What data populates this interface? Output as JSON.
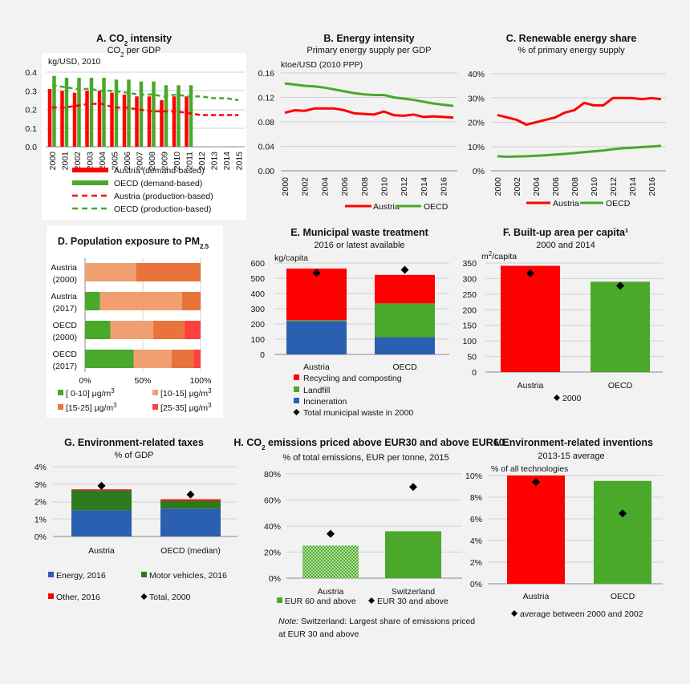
{
  "colors": {
    "austria": "#ff0000",
    "oecd": "#4aa82a",
    "darkgreen": "#2d7a1e",
    "blue": "#2b5fb0",
    "salmon": "#f0a070",
    "orange": "#e8743c",
    "lightred": "#ff4040",
    "bg": "#f2f2f2"
  },
  "chart_data": [
    {
      "id": "A",
      "type": "bar",
      "title": "A. CO",
      "title_sub": "2",
      "title_end": " intensity",
      "subtitle_pre": "CO",
      "subtitle_sub": "2",
      "subtitle_end": " per GDP",
      "ylabel": "kg/USD, 2010",
      "ylim": [
        0,
        0.4
      ],
      "yticks": [
        "0.0",
        "0.1",
        "0.2",
        "0.3",
        "0.4"
      ],
      "categories": [
        "2000",
        "2001",
        "2002",
        "2003",
        "2004",
        "2005",
        "2006",
        "2007",
        "2008",
        "2009",
        "2010",
        "2011",
        "2012",
        "2013",
        "2014",
        "2015"
      ],
      "series": [
        {
          "name": "Austria (demand-based)",
          "kind": "bar",
          "values": [
            0.31,
            0.3,
            0.29,
            0.3,
            0.3,
            0.29,
            0.28,
            0.27,
            0.27,
            0.25,
            0.27,
            0.27,
            null,
            null,
            null,
            null
          ]
        },
        {
          "name": "OECD (demand-based)",
          "kind": "bar",
          "values": [
            0.38,
            0.37,
            0.37,
            0.37,
            0.37,
            0.36,
            0.36,
            0.35,
            0.35,
            0.33,
            0.33,
            0.33,
            null,
            null,
            null,
            null
          ]
        },
        {
          "name": "Austria (production-based)",
          "kind": "dash",
          "values": [
            0.21,
            0.21,
            0.22,
            0.23,
            0.23,
            0.21,
            0.21,
            0.2,
            0.19,
            0.19,
            0.19,
            0.18,
            0.17,
            0.17,
            0.17,
            0.17
          ]
        },
        {
          "name": "OECD (production-based)",
          "kind": "dash",
          "values": [
            0.33,
            0.32,
            0.31,
            0.31,
            0.3,
            0.3,
            0.29,
            0.28,
            0.28,
            0.27,
            0.28,
            0.27,
            0.27,
            0.26,
            0.26,
            0.25
          ]
        }
      ],
      "legend": [
        "Austria (demand-based)",
        "OECD (demand-based)",
        "Austria (production-based)",
        "OECD (production-based)"
      ]
    },
    {
      "id": "B",
      "type": "line",
      "title": "B. Energy intensity",
      "subtitle": "Primary energy supply per GDP",
      "ylabel": "ktoe/USD (2010 PPP)",
      "ylim": [
        0,
        0.16
      ],
      "yticks": [
        "0.00",
        "0.04",
        "0.08",
        "0.12",
        "0.16"
      ],
      "x": [
        2000,
        2001,
        2002,
        2003,
        2004,
        2005,
        2006,
        2007,
        2008,
        2009,
        2010,
        2011,
        2012,
        2013,
        2014,
        2015,
        2016,
        2017
      ],
      "xticks": [
        "2000",
        "2002",
        "2004",
        "2006",
        "2008",
        "2010",
        "2012",
        "2014",
        "2016"
      ],
      "series": [
        {
          "name": "Austria",
          "values": [
            0.095,
            0.099,
            0.098,
            0.102,
            0.102,
            0.102,
            0.099,
            0.094,
            0.093,
            0.092,
            0.097,
            0.091,
            0.09,
            0.092,
            0.088,
            0.089,
            0.088,
            0.087
          ]
        },
        {
          "name": "OECD",
          "values": [
            0.143,
            0.141,
            0.139,
            0.138,
            0.136,
            0.133,
            0.13,
            0.127,
            0.125,
            0.124,
            0.124,
            0.12,
            0.118,
            0.116,
            0.113,
            0.11,
            0.108,
            0.106
          ]
        }
      ]
    },
    {
      "id": "C",
      "type": "line",
      "title": "C. Renewable energy share",
      "subtitle": "% of primary energy supply",
      "ylim": [
        0,
        40
      ],
      "yticks": [
        "0%",
        "10%",
        "20%",
        "30%",
        "40%"
      ],
      "x": [
        2000,
        2001,
        2002,
        2003,
        2004,
        2005,
        2006,
        2007,
        2008,
        2009,
        2010,
        2011,
        2012,
        2013,
        2014,
        2015,
        2016,
        2017
      ],
      "xticks": [
        "2000",
        "2002",
        "2004",
        "2006",
        "2008",
        "2010",
        "2012",
        "2014",
        "2016"
      ],
      "series": [
        {
          "name": "Austria",
          "values": [
            23,
            22,
            21,
            19,
            20,
            21,
            22,
            24,
            25,
            28,
            27,
            27,
            30,
            30,
            30,
            29.5,
            30,
            29.5
          ]
        },
        {
          "name": "OECD",
          "values": [
            6,
            5.8,
            5.9,
            6,
            6.2,
            6.4,
            6.7,
            7,
            7.3,
            7.7,
            8,
            8.4,
            8.9,
            9.3,
            9.5,
            9.8,
            10,
            10.3
          ]
        }
      ]
    },
    {
      "id": "D",
      "type": "bar",
      "title": "D. Population exposure to PM",
      "title_sub": "2.5",
      "categories": [
        [
          "Austria",
          "(2000)"
        ],
        [
          "Austria",
          "(2017)"
        ],
        [
          "OECD",
          "(2000)"
        ],
        [
          "OECD",
          "(2017)"
        ]
      ],
      "xticks": [
        "0%",
        "50%",
        "100%"
      ],
      "series": [
        {
          "name": "[ 0-10] μg/m³",
          "values": [
            0,
            13,
            22,
            42
          ]
        },
        {
          "name": "[10-15] μg/m³",
          "values": [
            44,
            71,
            37,
            33
          ]
        },
        {
          "name": "[15-25] μg/m³",
          "values": [
            56,
            16,
            27,
            19
          ]
        },
        {
          "name": "[25-35] μg/m³",
          "values": [
            0,
            0,
            14,
            6
          ]
        }
      ],
      "legend": [
        [
          "[ 0-10] μg/m",
          "[10-15] μg/m"
        ],
        [
          "[15-25] μg/m",
          "[25-35] μg/m"
        ]
      ],
      "legend_sup": "3"
    },
    {
      "id": "E",
      "type": "bar",
      "title": "E. Municipal waste treatment",
      "subtitle": "2016 or latest available",
      "ylabel": "kg/capita",
      "ylim": [
        0,
        600
      ],
      "yticks": [
        "0",
        "100",
        "200",
        "300",
        "400",
        "500",
        "600"
      ],
      "categories": [
        "Austria",
        "OECD"
      ],
      "series": [
        {
          "name": "Incineration",
          "values": [
            218,
            113
          ]
        },
        {
          "name": "Landfill",
          "values": [
            7,
            222
          ]
        },
        {
          "name": "Recycling and composting",
          "values": [
            339,
            187
          ]
        },
        {
          "name": "Total municipal waste in 2000",
          "kind": "marker",
          "values": [
            535,
            555
          ]
        }
      ],
      "legend": [
        "Recycling and composting",
        "Landfill",
        "Incineration",
        "Total municipal waste in 2000"
      ]
    },
    {
      "id": "F",
      "type": "bar",
      "title": "F. Built-up area per capita¹",
      "subtitle": "2000 and 2014",
      "ylabel_pre": "m",
      "ylabel_sup": "2",
      "ylabel_end": "/capita",
      "ylim": [
        0,
        350
      ],
      "yticks": [
        "0",
        "50",
        "100",
        "150",
        "200",
        "250",
        "300",
        "350"
      ],
      "categories": [
        "Austria",
        "OECD"
      ],
      "series": [
        {
          "name": "2014",
          "values": [
            341,
            290
          ]
        },
        {
          "name": "2000",
          "kind": "marker",
          "values": [
            317,
            277
          ]
        }
      ],
      "legend": [
        "2000"
      ]
    },
    {
      "id": "G",
      "type": "bar",
      "title": "G. Environment-related taxes",
      "subtitle": "% of GDP",
      "ylim": [
        0,
        4
      ],
      "yticks": [
        "0%",
        "1%",
        "2%",
        "3%",
        "4%"
      ],
      "categories": [
        "Austria",
        "OECD (median)"
      ],
      "series": [
        {
          "name": "Energy, 2016",
          "values": [
            1.5,
            1.6
          ]
        },
        {
          "name": "Motor vehicles, 2016",
          "values": [
            1.15,
            0.45
          ]
        },
        {
          "name": "Other, 2016",
          "values": [
            0.05,
            0.08
          ]
        },
        {
          "name": "Total, 2000",
          "kind": "marker",
          "values": [
            2.9,
            2.4
          ]
        }
      ],
      "legend": [
        [
          "Energy, 2016",
          "Motor vehicles, 2016"
        ],
        [
          "Other, 2016",
          "Total, 2000"
        ]
      ]
    },
    {
      "id": "H",
      "type": "bar",
      "title_pre": "H. CO",
      "title_sub": "2",
      "title_end": " emissions priced above EUR30 and above EUR60",
      "subtitle": "% of total emissions, EUR per tonne, 2015",
      "ylim": [
        0,
        80
      ],
      "yticks": [
        "0%",
        "20%",
        "40%",
        "60%",
        "80%"
      ],
      "categories": [
        "Austria",
        "Switzerland"
      ],
      "series": [
        {
          "name": "EUR 60 and above",
          "values": [
            25,
            36
          ]
        },
        {
          "name": "EUR 30 and above",
          "kind": "marker",
          "values": [
            34,
            70
          ]
        }
      ],
      "legend": [
        "EUR 60 and above",
        "EUR 30 and above"
      ],
      "note_label": "Note:",
      "note_text": " Switzerland: Largest share of emissions priced",
      "note_text2": "at EUR 30 and above"
    },
    {
      "id": "I",
      "type": "bar",
      "title": "I. Environment-related inventions",
      "subtitle": "2013-15 average",
      "ylabel": "% of all technologies",
      "ylim": [
        0,
        10
      ],
      "yticks": [
        "0%",
        "2%",
        "4%",
        "6%",
        "8%",
        "10%"
      ],
      "categories": [
        "Austria",
        "OECD"
      ],
      "series": [
        {
          "name": "2013-15 average",
          "values": [
            10.3,
            9.5
          ]
        },
        {
          "name": "average between 2000 and 2002",
          "kind": "marker",
          "values": [
            9.4,
            6.5
          ]
        }
      ],
      "legend": [
        "average between 2000 and 2002"
      ]
    }
  ]
}
